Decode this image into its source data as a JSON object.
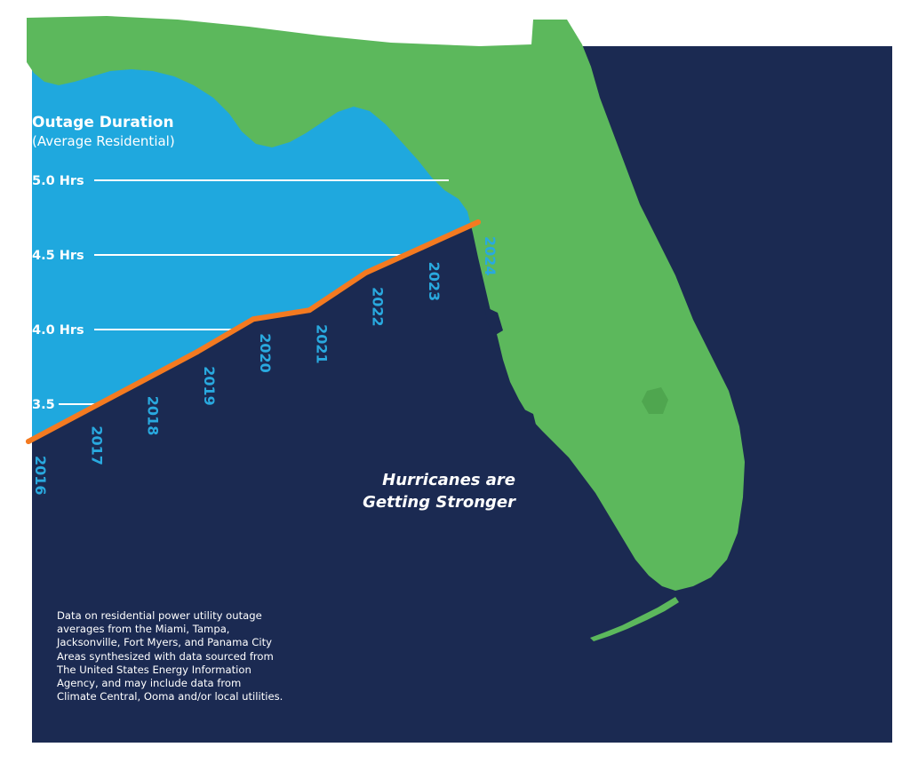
{
  "colors": {
    "navy": "#1b2a52",
    "sky": "#1fa8de",
    "land": "#5cb85c",
    "line": "#f47a20",
    "tick_label": "#29a9df",
    "text": "#ffffff"
  },
  "chart_data": {
    "type": "line",
    "title": "Outage Duration",
    "subtitle": "(Average Residential)",
    "x": [
      "2016",
      "2017",
      "2018",
      "2019",
      "2020",
      "2021",
      "2022",
      "2023",
      "2024"
    ],
    "series": [
      {
        "values": [
          3.25,
          3.45,
          3.65,
          3.85,
          4.07,
          4.13,
          4.38,
          4.55,
          4.72
        ]
      }
    ],
    "y_tick_labels": [
      "3.5",
      "4.0 Hrs",
      "4.5 Hrs",
      "5.0 Hrs"
    ],
    "y_tick_values": [
      3.5,
      4.0,
      4.5,
      5.0
    ],
    "ylim": [
      3.25,
      5.0
    ],
    "grid": true,
    "annotation_lines": [
      "Hurricanes are",
      "Getting Stronger"
    ]
  },
  "footnote_lines": [
    "Data on residential power utility outage",
    "averages from the Miami, Tampa,",
    "Jacksonville, Fort Myers, and Panama City",
    "Areas synthesized with data sourced from",
    "The United States Energy Information",
    "Agency, and may include data from",
    "Climate Central, Ooma and/or local utilities."
  ]
}
